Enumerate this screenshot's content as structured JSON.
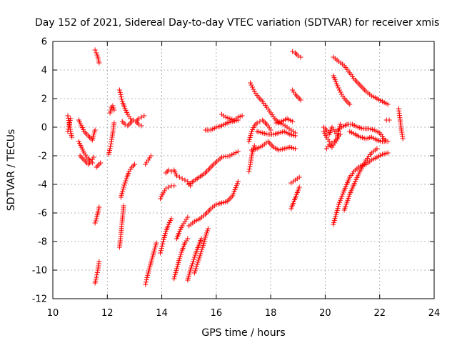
{
  "chart_data": {
    "type": "scatter",
    "title": "Day 152 of 2021, Sidereal Day-to-day VTEC variation (SDTVAR) for receiver xmis",
    "xlabel": "GPS time / hours",
    "ylabel": "SDTVAR / TECUs",
    "xlim": [
      10,
      24
    ],
    "ylim": [
      -12,
      6
    ],
    "xticks": [
      10,
      12,
      14,
      16,
      18,
      20,
      22,
      24
    ],
    "yticks": [
      -12,
      -10,
      -8,
      -6,
      -4,
      -2,
      0,
      2,
      4,
      6
    ],
    "grid": true,
    "marker": "+",
    "color": "#ff0000",
    "segments": [
      {
        "x": [
          10.55,
          10.6,
          10.65,
          10.7
        ],
        "y": [
          0.8,
          0.3,
          -0.3,
          -0.7
        ]
      },
      {
        "x": [
          10.55,
          10.6,
          10.65
        ],
        "y": [
          -0.3,
          0.2,
          0.6
        ]
      },
      {
        "x": [
          10.95,
          11.05,
          11.15,
          11.25,
          11.35,
          11.45,
          11.55
        ],
        "y": [
          0.5,
          0.1,
          -0.3,
          -0.5,
          -0.7,
          -0.9,
          -0.2
        ]
      },
      {
        "x": [
          10.95,
          11.05,
          11.15,
          11.25,
          11.35,
          11.45
        ],
        "y": [
          -1.0,
          -1.4,
          -1.8,
          -2.1,
          -2.3,
          -2.5
        ]
      },
      {
        "x": [
          11.0,
          11.1,
          11.2,
          11.3,
          11.4,
          11.5
        ],
        "y": [
          -2.0,
          -2.2,
          -2.4,
          -2.6,
          -2.4,
          -2.1
        ]
      },
      {
        "x": [
          11.6,
          11.7,
          11.75
        ],
        "y": [
          -2.8,
          -2.6,
          -2.5
        ]
      },
      {
        "x": [
          11.55,
          11.6,
          11.65,
          11.7
        ],
        "y": [
          5.4,
          5.2,
          4.9,
          4.5
        ]
      },
      {
        "x": [
          11.55,
          11.6,
          11.65,
          11.7
        ],
        "y": [
          -6.7,
          -6.4,
          -6.0,
          -5.6
        ]
      },
      {
        "x": [
          11.55,
          11.6,
          11.65,
          11.7
        ],
        "y": [
          -10.9,
          -10.5,
          -10.0,
          -9.4
        ]
      },
      {
        "x": [
          12.05,
          12.1,
          12.15,
          12.2,
          12.25
        ],
        "y": [
          -1.9,
          -1.5,
          -1.0,
          -0.4,
          0.3
        ]
      },
      {
        "x": [
          12.1,
          12.15,
          12.2,
          12.25
        ],
        "y": [
          1.0,
          1.4,
          1.5,
          1.2
        ]
      },
      {
        "x": [
          12.45,
          12.5,
          12.55,
          12.6
        ],
        "y": [
          -8.4,
          -7.5,
          -6.5,
          -5.5
        ]
      },
      {
        "x": [
          12.5,
          12.6,
          12.7,
          12.8,
          12.9,
          13.0
        ],
        "y": [
          -4.9,
          -4.2,
          -3.6,
          -3.1,
          -2.8,
          -2.6
        ]
      },
      {
        "x": [
          12.45,
          12.55,
          12.65,
          12.75,
          12.85,
          12.95,
          13.05,
          13.15,
          13.25,
          13.35
        ],
        "y": [
          2.6,
          1.8,
          1.3,
          0.9,
          0.6,
          0.5,
          0.4,
          0.6,
          0.7,
          0.8
        ]
      },
      {
        "x": [
          12.55,
          12.65,
          12.75,
          12.85,
          12.95,
          13.05,
          13.15,
          13.25
        ],
        "y": [
          0.4,
          0.2,
          0.1,
          0.3,
          0.5,
          0.4,
          0.2,
          0.1
        ]
      },
      {
        "x": [
          13.4,
          13.5,
          13.6
        ],
        "y": [
          -2.6,
          -2.3,
          -2.0
        ]
      },
      {
        "x": [
          13.4,
          13.5,
          13.6,
          13.7,
          13.8
        ],
        "y": [
          -11.0,
          -10.2,
          -9.5,
          -8.8,
          -8.1
        ]
      },
      {
        "x": [
          13.95,
          14.05,
          14.15,
          14.25,
          14.35
        ],
        "y": [
          -8.8,
          -8.0,
          -7.3,
          -6.8,
          -6.4
        ]
      },
      {
        "x": [
          13.95,
          14.05,
          14.15,
          14.25,
          14.35,
          14.45
        ],
        "y": [
          -5.0,
          -4.6,
          -4.3,
          -4.2,
          -4.1,
          -4.1
        ]
      },
      {
        "x": [
          14.15,
          14.25,
          14.35
        ],
        "y": [
          -3.2,
          -3.0,
          -3.1
        ]
      },
      {
        "x": [
          14.45,
          14.55,
          14.65,
          14.75,
          14.85,
          14.95,
          15.05
        ],
        "y": [
          -3.0,
          -3.4,
          -3.5,
          -3.6,
          -3.7,
          -3.8,
          -4.1
        ]
      },
      {
        "x": [
          14.45,
          14.55,
          14.65,
          14.75,
          14.85,
          14.95
        ],
        "y": [
          -10.6,
          -9.9,
          -9.2,
          -8.6,
          -8.1,
          -7.8
        ]
      },
      {
        "x": [
          14.55,
          14.65,
          14.75,
          14.85,
          14.95
        ],
        "y": [
          -7.8,
          -7.3,
          -6.9,
          -6.6,
          -6.3
        ]
      },
      {
        "x": [
          14.95,
          15.05,
          15.15,
          15.25,
          15.35,
          15.45
        ],
        "y": [
          -10.7,
          -10.0,
          -9.4,
          -8.8,
          -8.3,
          -7.8
        ]
      },
      {
        "x": [
          15.2,
          15.3,
          15.4,
          15.5,
          15.6,
          15.7
        ],
        "y": [
          -10.2,
          -9.6,
          -9.0,
          -8.4,
          -7.7,
          -7.1
        ]
      },
      {
        "x": [
          15.0,
          15.2,
          15.4,
          15.6,
          15.8,
          16.0,
          16.2,
          16.4,
          16.6,
          16.8
        ],
        "y": [
          -6.9,
          -6.6,
          -6.4,
          -6.1,
          -5.7,
          -5.4,
          -5.3,
          -5.2,
          -4.8,
          -3.8
        ]
      },
      {
        "x": [
          15.0,
          15.3,
          15.6,
          15.9,
          16.2,
          16.5,
          16.8
        ],
        "y": [
          -4.0,
          -3.6,
          -3.2,
          -2.6,
          -2.1,
          -2.0,
          -1.7
        ]
      },
      {
        "x": [
          15.6,
          15.8,
          16.0,
          16.2,
          16.4,
          16.6,
          16.8
        ],
        "y": [
          -0.2,
          -0.2,
          0.0,
          0.1,
          0.3,
          0.4,
          0.5
        ]
      },
      {
        "x": [
          16.2,
          16.35,
          16.5,
          16.65,
          16.8,
          16.95
        ],
        "y": [
          0.9,
          0.7,
          0.6,
          0.5,
          0.7,
          0.8
        ]
      },
      {
        "x": [
          17.2,
          17.25,
          17.3,
          17.35,
          17.4
        ],
        "y": [
          -3.1,
          -2.6,
          -2.0,
          -1.6,
          -1.3
        ]
      },
      {
        "x": [
          17.3,
          17.5,
          17.7,
          17.9,
          18.1,
          18.3,
          18.5,
          18.7,
          18.9
        ],
        "y": [
          -1.6,
          -1.5,
          -1.3,
          -1.0,
          -1.4,
          -1.6,
          -1.5,
          -1.4,
          -1.5
        ]
      },
      {
        "x": [
          17.2,
          17.3,
          17.4,
          17.5,
          17.6,
          17.7,
          17.8,
          17.9,
          18.0
        ],
        "y": [
          -1.0,
          -0.3,
          0.1,
          0.3,
          0.4,
          0.5,
          0.3,
          0.1,
          -0.2
        ]
      },
      {
        "x": [
          17.25,
          17.4,
          17.55,
          17.7,
          17.85,
          18.0,
          18.15,
          18.3,
          18.45,
          18.6,
          18.75,
          18.9
        ],
        "y": [
          3.1,
          2.5,
          2.1,
          1.8,
          1.4,
          1.0,
          0.6,
          0.3,
          0.2,
          0.0,
          -0.2,
          -0.4
        ]
      },
      {
        "x": [
          17.5,
          17.7,
          17.9,
          18.1,
          18.3,
          18.5,
          18.7,
          18.9
        ],
        "y": [
          -0.3,
          -0.4,
          -0.5,
          -0.5,
          -0.4,
          -0.3,
          -0.5,
          -0.6
        ]
      },
      {
        "x": [
          18.2,
          18.4,
          18.6,
          18.8
        ],
        "y": [
          0.3,
          0.4,
          0.6,
          0.4
        ]
      },
      {
        "x": [
          18.8,
          18.9,
          19.0,
          19.1
        ],
        "y": [
          5.3,
          5.2,
          5.0,
          4.9
        ]
      },
      {
        "x": [
          18.8,
          18.9,
          19.0,
          19.1
        ],
        "y": [
          2.6,
          2.3,
          2.1,
          1.9
        ]
      },
      {
        "x": [
          18.75,
          18.85,
          18.95,
          19.05
        ],
        "y": [
          -5.7,
          -5.2,
          -4.7,
          -4.2
        ]
      },
      {
        "x": [
          18.75,
          18.9,
          19.05
        ],
        "y": [
          -3.9,
          -3.7,
          -3.5
        ]
      },
      {
        "x": [
          19.95,
          20.05,
          20.15,
          20.25,
          20.35,
          20.45,
          20.55
        ],
        "y": [
          -0.3,
          -0.7,
          -1.0,
          -1.1,
          -1.0,
          -0.7,
          -0.5
        ]
      },
      {
        "x": [
          19.95,
          20.05,
          20.15,
          20.25,
          20.35,
          20.45,
          20.55
        ],
        "y": [
          0.0,
          -0.2,
          -0.5,
          0.0,
          -0.3,
          -0.6,
          0.2
        ]
      },
      {
        "x": [
          20.05,
          20.15,
          20.25,
          20.35,
          20.45
        ],
        "y": [
          -1.5,
          -1.2,
          -1.4,
          -1.1,
          -0.8
        ]
      },
      {
        "x": [
          20.3,
          20.5,
          20.7,
          20.9,
          21.1,
          21.3,
          21.5,
          21.7,
          21.9,
          22.1,
          22.3
        ],
        "y": [
          4.9,
          4.6,
          4.3,
          3.8,
          3.3,
          2.9,
          2.5,
          2.2,
          2.0,
          1.8,
          1.6
        ]
      },
      {
        "x": [
          20.3,
          20.45,
          20.6,
          20.75,
          20.9
        ],
        "y": [
          3.6,
          2.9,
          2.3,
          1.9,
          1.6
        ]
      },
      {
        "x": [
          20.4,
          20.6,
          20.8,
          21.0,
          21.2,
          21.4,
          21.6,
          21.8,
          22.0,
          22.2
        ],
        "y": [
          -0.3,
          0.0,
          0.2,
          0.2,
          0.0,
          -0.1,
          -0.1,
          -0.2,
          -0.4,
          -0.9
        ]
      },
      {
        "x": [
          20.9,
          21.1,
          21.3,
          21.5,
          21.7,
          21.9,
          22.1,
          22.3
        ],
        "y": [
          -0.3,
          -0.5,
          -0.7,
          -0.8,
          -0.7,
          -0.9,
          -1.0,
          -1.0
        ]
      },
      {
        "x": [
          20.3,
          20.5,
          20.7,
          20.9,
          21.1,
          21.3,
          21.5,
          21.7,
          21.9,
          22.1,
          22.3
        ],
        "y": [
          -6.8,
          -5.4,
          -4.4,
          -3.5,
          -3.0,
          -2.7,
          -2.6,
          -2.3,
          -2.1,
          -1.9,
          -1.8
        ]
      },
      {
        "x": [
          20.7,
          20.9,
          21.1,
          21.3,
          21.5,
          21.7,
          21.9
        ],
        "y": [
          -5.8,
          -4.7,
          -3.8,
          -3.0,
          -2.3,
          -1.8,
          -1.5
        ]
      },
      {
        "x": [
          22.25,
          22.35
        ],
        "y": [
          0.5,
          0.5
        ]
      },
      {
        "x": [
          22.7,
          22.75,
          22.8,
          22.85
        ],
        "y": [
          1.3,
          0.5,
          -0.2,
          -0.8
        ]
      }
    ]
  }
}
